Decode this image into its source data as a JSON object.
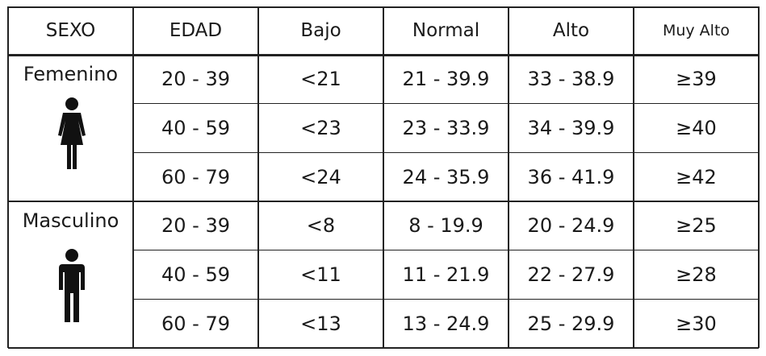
{
  "header": {
    "columns": [
      "SEXO",
      "EDAD",
      "Bajo",
      "Normal",
      "Alto",
      "Muy Alto"
    ]
  },
  "groups": [
    {
      "sexo": "Femenino",
      "rows": [
        [
          "20 - 39",
          "<21",
          "21 - 39.9",
          "33 - 38.9",
          "≥39"
        ],
        [
          "40 - 59",
          "<23",
          "23 - 33.9",
          "34 - 39.9",
          "≥40"
        ],
        [
          "60 - 79",
          "<24",
          "24 - 35.9",
          "36 - 41.9",
          "≥42"
        ]
      ]
    },
    {
      "sexo": "Masculino",
      "rows": [
        [
          "20 - 39",
          "<8",
          "8 - 19.9",
          "20 - 24.9",
          "≥25"
        ],
        [
          "40 - 59",
          "<11",
          "11 - 21.9",
          "22 - 27.9",
          "≥28"
        ],
        [
          "60 - 79",
          "<13",
          "13 - 24.9",
          "25 - 29.9",
          "≥30"
        ]
      ]
    }
  ]
}
